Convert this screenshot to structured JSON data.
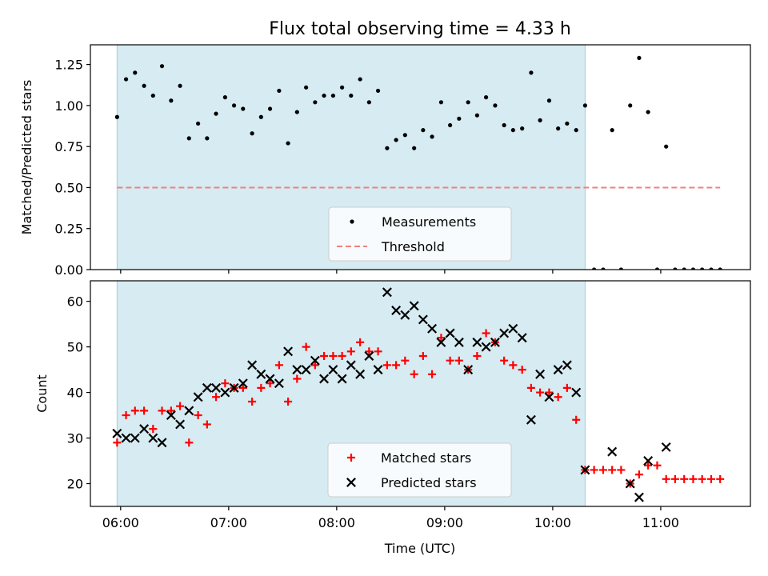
{
  "chart_data": {
    "type": "scatter",
    "title": "Flux total observing time = 4.33 h",
    "xlabel": "Time (UTC)",
    "x_ticks": [
      "06:00",
      "07:00",
      "08:00",
      "09:00",
      "10:00",
      "11:00"
    ],
    "x_tick_hours": [
      6,
      7,
      8,
      9,
      10,
      11
    ],
    "xlim_hours": [
      5.72,
      11.83
    ],
    "shaded_interval_hours": [
      5.967,
      10.3
    ],
    "panels": [
      {
        "ylabel": "Matched/Predicted stars",
        "ylim": [
          0,
          1.37
        ],
        "yticks": [
          0.0,
          0.25,
          0.5,
          0.75,
          1.0,
          1.25
        ],
        "ytick_labels": [
          "0.00",
          "0.25",
          "0.50",
          "0.75",
          "1.00",
          "1.25"
        ],
        "legend_position": "lower-center",
        "series": [
          {
            "name": "Measurements",
            "marker": "dot",
            "color": "#000000",
            "x": [
              5.967,
              6.05,
              6.133,
              6.217,
              6.3,
              6.383,
              6.467,
              6.55,
              6.633,
              6.717,
              6.8,
              6.883,
              6.967,
              7.05,
              7.133,
              7.217,
              7.3,
              7.383,
              7.467,
              7.55,
              7.633,
              7.717,
              7.8,
              7.883,
              7.967,
              8.05,
              8.133,
              8.217,
              8.3,
              8.383,
              8.467,
              8.55,
              8.633,
              8.717,
              8.8,
              8.883,
              8.967,
              9.05,
              9.133,
              9.217,
              9.3,
              9.383,
              9.467,
              9.55,
              9.633,
              9.717,
              9.8,
              9.883,
              9.967,
              10.05,
              10.133,
              10.217,
              10.3,
              10.383,
              10.467,
              10.55,
              10.633,
              10.717,
              10.8,
              10.883,
              10.967,
              11.05,
              11.133,
              11.217,
              11.3,
              11.383,
              11.467,
              11.55
            ],
            "y": [
              0.93,
              1.16,
              1.2,
              1.12,
              1.06,
              1.24,
              1.03,
              1.12,
              0.8,
              0.89,
              0.8,
              0.95,
              1.05,
              1.0,
              0.98,
              0.83,
              0.93,
              0.98,
              1.09,
              0.77,
              0.96,
              1.11,
              1.02,
              1.06,
              1.06,
              1.11,
              1.06,
              1.16,
              1.02,
              1.09,
              0.74,
              0.79,
              0.82,
              0.74,
              0.85,
              0.81,
              1.02,
              0.88,
              0.92,
              1.02,
              0.94,
              1.05,
              1.0,
              0.88,
              0.85,
              0.86,
              1.2,
              0.91,
              1.03,
              0.86,
              0.89,
              0.85,
              1.0,
              0.0,
              0.0,
              0.85,
              0.0,
              1.0,
              1.29,
              0.96,
              0.0,
              0.75,
              0.0,
              0.0,
              0.0,
              0.0,
              0.0,
              0.0
            ]
          },
          {
            "name": "Threshold",
            "marker": "dashed-line",
            "color": "#f08080",
            "x": [
              5.967,
              11.55
            ],
            "y": [
              0.5,
              0.5
            ]
          }
        ]
      },
      {
        "ylabel": "Count",
        "ylim": [
          15,
          64.5
        ],
        "yticks": [
          20,
          30,
          40,
          50,
          60
        ],
        "ytick_labels": [
          "20",
          "30",
          "40",
          "50",
          "60"
        ],
        "legend_position": "lower-center",
        "series": [
          {
            "name": "Matched stars",
            "marker": "plus",
            "color": "#ff0000",
            "x": [
              5.967,
              6.05,
              6.133,
              6.217,
              6.3,
              6.383,
              6.467,
              6.55,
              6.633,
              6.717,
              6.8,
              6.883,
              6.967,
              7.05,
              7.133,
              7.217,
              7.3,
              7.383,
              7.467,
              7.55,
              7.633,
              7.717,
              7.8,
              7.883,
              7.967,
              8.05,
              8.133,
              8.217,
              8.3,
              8.383,
              8.467,
              8.55,
              8.633,
              8.717,
              8.8,
              8.883,
              8.967,
              9.05,
              9.133,
              9.217,
              9.3,
              9.383,
              9.467,
              9.55,
              9.633,
              9.717,
              9.8,
              9.883,
              9.967,
              10.05,
              10.133,
              10.217,
              10.3,
              10.383,
              10.467,
              10.55,
              10.633,
              10.717,
              10.8,
              10.883,
              10.967,
              11.05,
              11.133,
              11.217,
              11.3,
              11.383,
              11.467,
              11.55
            ],
            "y": [
              29,
              35,
              36,
              36,
              32,
              36,
              36,
              37,
              29,
              35,
              33,
              39,
              42,
              41,
              41,
              38,
              41,
              42,
              46,
              38,
              43,
              50,
              46,
              48,
              48,
              48,
              49,
              51,
              49,
              49,
              46,
              46,
              47,
              44,
              48,
              44,
              52,
              47,
              47,
              45,
              48,
              53,
              51,
              47,
              46,
              45,
              41,
              40,
              40,
              39,
              41,
              34,
              23,
              23,
              23,
              23,
              23,
              20,
              22,
              24,
              24,
              21,
              21,
              21,
              21,
              21,
              21,
              21
            ]
          },
          {
            "name": "Predicted stars",
            "marker": "x",
            "color": "#000000",
            "x": [
              5.967,
              6.05,
              6.133,
              6.217,
              6.3,
              6.383,
              6.467,
              6.55,
              6.633,
              6.717,
              6.8,
              6.883,
              6.967,
              7.05,
              7.133,
              7.217,
              7.3,
              7.383,
              7.467,
              7.55,
              7.633,
              7.717,
              7.8,
              7.883,
              7.967,
              8.05,
              8.133,
              8.217,
              8.3,
              8.383,
              8.467,
              8.55,
              8.633,
              8.717,
              8.8,
              8.883,
              8.967,
              9.05,
              9.133,
              9.217,
              9.3,
              9.383,
              9.467,
              9.55,
              9.633,
              9.717,
              9.8,
              9.883,
              9.967,
              10.05,
              10.133,
              10.217,
              10.3,
              10.55,
              10.717,
              10.8,
              10.883,
              11.05
            ],
            "y": [
              31,
              30,
              30,
              32,
              30,
              29,
              35,
              33,
              36,
              39,
              41,
              41,
              40,
              41,
              42,
              46,
              44,
              43,
              42,
              49,
              45,
              45,
              47,
              43,
              45,
              43,
              46,
              44,
              48,
              45,
              62,
              58,
              57,
              59,
              56,
              54,
              51,
              53,
              51,
              45,
              51,
              50,
              51,
              53,
              54,
              52,
              34,
              44,
              39,
              45,
              46,
              40,
              23,
              27,
              20,
              17,
              25,
              28
            ]
          }
        ]
      }
    ]
  }
}
